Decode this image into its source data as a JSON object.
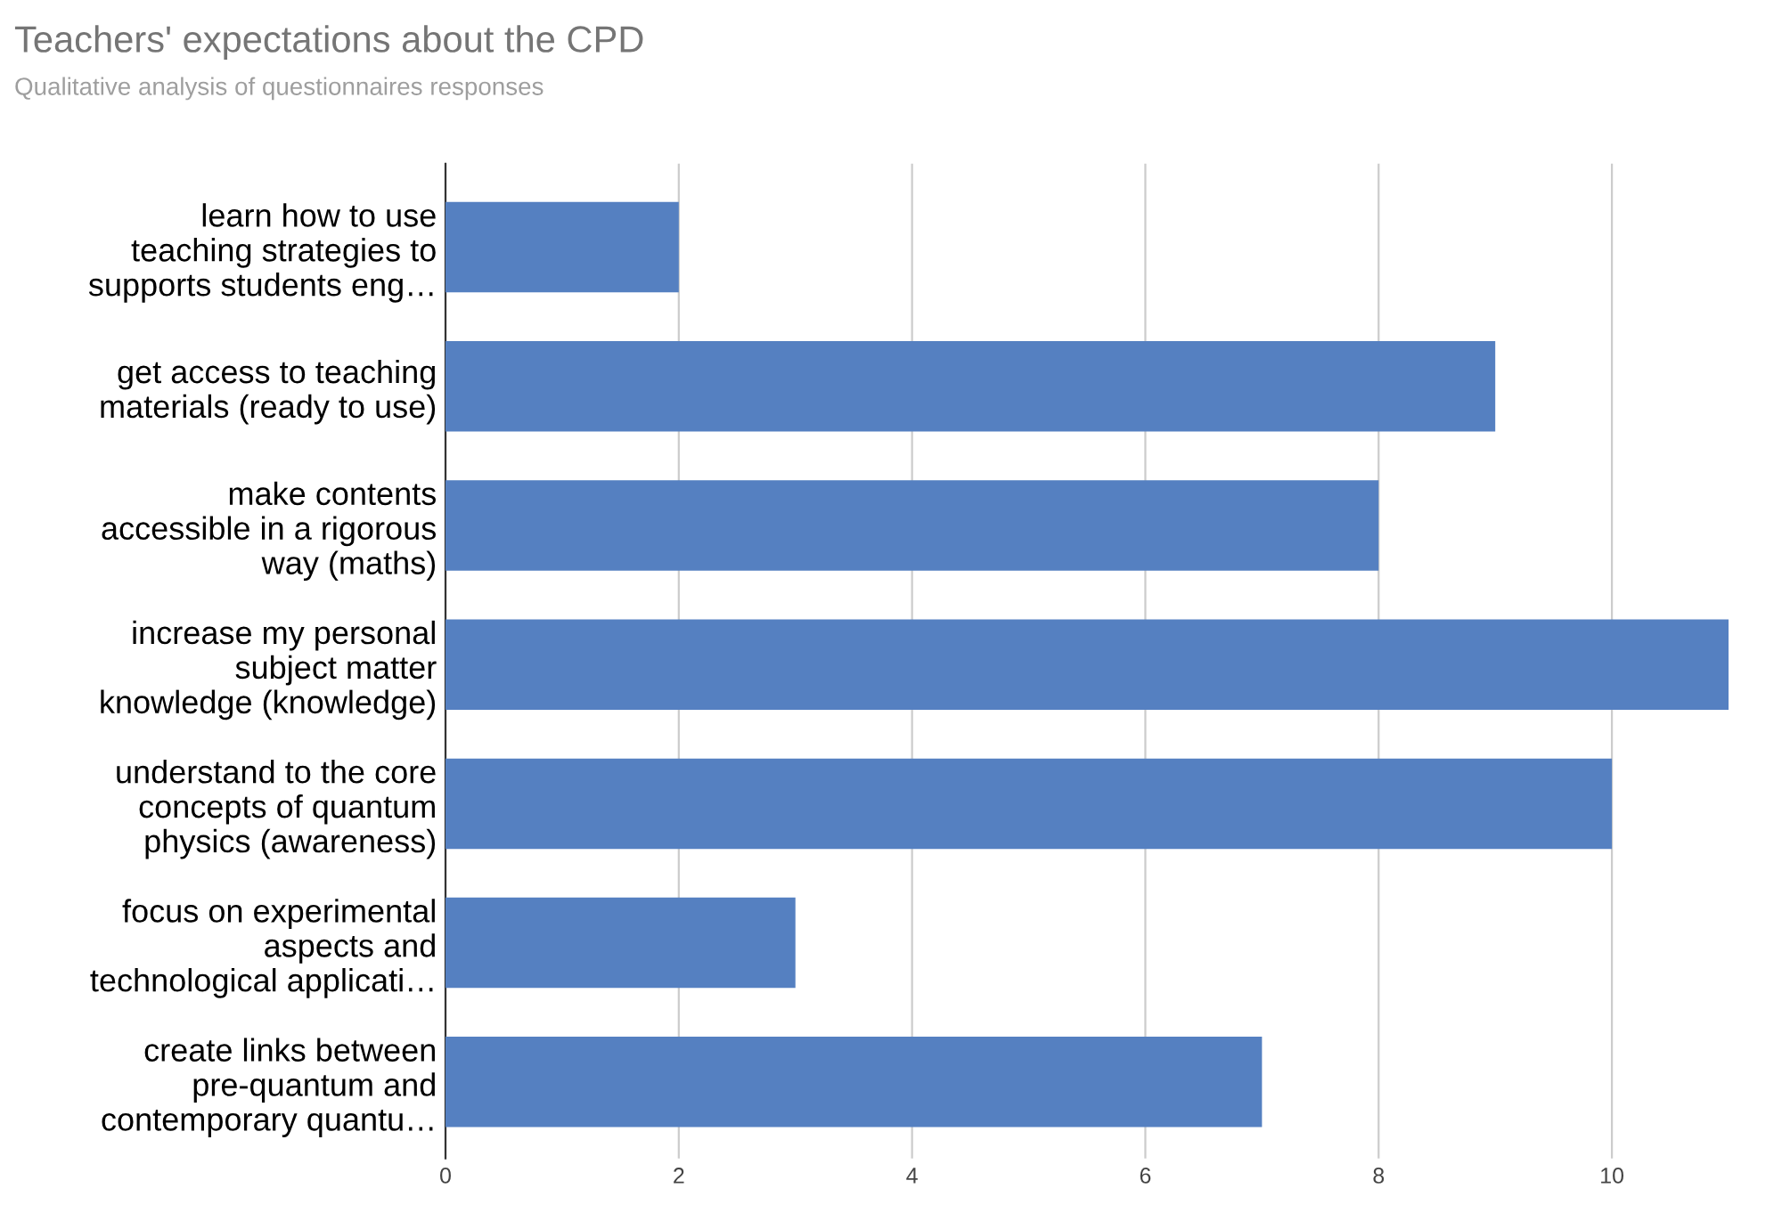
{
  "chart_data": {
    "type": "bar",
    "orientation": "horizontal",
    "title": "Teachers' expectations about the CPD",
    "subtitle": "Qualitative analysis of questionnaires responses",
    "categories": [
      "learn how to use\nteaching strategies to\nsupports students eng…",
      "get access to teaching\nmaterials (ready to use)",
      "make contents\naccessible in a rigorous\nway (maths)",
      "increase my personal\nsubject matter\nknowledge (knowledge)",
      "understand to the core\nconcepts of quantum\nphysics (awareness)",
      "focus on experimental\naspects and\ntechnological applicati…",
      "create links between\npre-quantum and\ncontemporary quantu…"
    ],
    "values": [
      2,
      9,
      8,
      11,
      10,
      3,
      7
    ],
    "color": "#5580c1",
    "xlim": [
      0,
      11
    ],
    "xticks": [
      0,
      2,
      4,
      6,
      8,
      10
    ],
    "grid": "x",
    "legend": false
  }
}
